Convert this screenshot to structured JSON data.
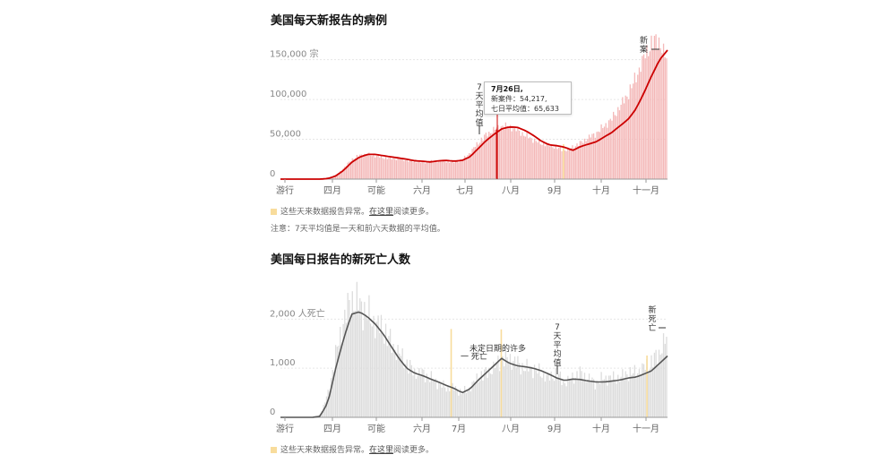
{
  "chart_data": [
    {
      "type": "bar",
      "title": "美国每天新报告的病例",
      "y_tick_labels": [
        "150,000 宗",
        "100,000",
        "50,000",
        "0"
      ],
      "y_ticks": [
        150000,
        100000,
        50000,
        0
      ],
      "ylim": [
        0,
        180000
      ],
      "x_tick_labels": [
        "游行",
        "四月",
        "可能",
        "六月",
        "七月",
        "八月",
        "9月",
        "十月",
        "十一月"
      ],
      "series": [
        {
          "name": "新案件",
          "anchor_values": [
            0,
            0,
            0,
            0,
            0,
            0,
            1000,
            5000,
            14000,
            25000,
            30000,
            31000,
            29000,
            27000,
            26000,
            25000,
            24000,
            22000,
            21000,
            22000,
            23000,
            22000,
            21000,
            24000,
            33000,
            45000,
            55000,
            62000,
            66000,
            66000,
            62000,
            55000,
            50000,
            45000,
            43000,
            40000,
            36000,
            40000,
            45000,
            52000,
            57000,
            66000,
            75000,
            90000,
            105000,
            125000,
            150000,
            170000,
            175000,
            150000
          ]
        },
        {
          "name": "7天平均值",
          "anchor_values": [
            0,
            0,
            0,
            0,
            0,
            0,
            700,
            4000,
            11000,
            21000,
            27500,
            31000,
            31000,
            29500,
            28000,
            26500,
            25000,
            23000,
            22500,
            21500,
            23000,
            23500,
            22500,
            23500,
            28000,
            38000,
            48000,
            56000,
            63000,
            65633,
            65000,
            61000,
            55000,
            48000,
            43000,
            42000,
            40000,
            36000,
            41000,
            44000,
            47000,
            53000,
            59000,
            67000,
            75000,
            88000,
            108000,
            130000,
            150000,
            162000
          ]
        }
      ],
      "annotations": [
        "新案",
        "7天平均值"
      ],
      "tooltip": {
        "date": "7月26日,",
        "line1": "新案件：54,217,",
        "line2": "七日平均值：65,633"
      },
      "note": "这些天来数据报告异常。",
      "note_link": "在这里",
      "note_suffix": "阅读更多。",
      "footnote": "注意：7天平均值是一天和前六天数据的平均值。",
      "colors": {
        "bars": "#f4b8b8",
        "line": "#cc0000",
        "anomaly": "#f8dc9c"
      }
    },
    {
      "type": "bar",
      "title": "美国每日报告的新死亡人数",
      "y_tick_labels": [
        "2,000 人死亡",
        "1,000",
        "0"
      ],
      "y_ticks": [
        2000,
        1000,
        0
      ],
      "ylim": [
        0,
        2700
      ],
      "x_tick_labels": [
        "游行",
        "四月",
        "可能",
        "六月",
        "7月",
        "八月",
        "9月",
        "十月",
        "十一月"
      ],
      "series": [
        {
          "name": "新死亡",
          "anchor_values": [
            0,
            0,
            0,
            0,
            0,
            50,
            500,
            1300,
            2000,
            2400,
            2300,
            2100,
            1900,
            1800,
            1500,
            1300,
            1100,
            900,
            900,
            800,
            700,
            600,
            600,
            500,
            600,
            800,
            900,
            1000,
            1200,
            1200,
            1100,
            1000,
            1000,
            900,
            800,
            900,
            700,
            800,
            900,
            800,
            700,
            800,
            800,
            800,
            900,
            900,
            1000,
            1100,
            1300,
            1600
          ]
        },
        {
          "name": "7天平均值",
          "anchor_values": [
            0,
            0,
            0,
            0,
            0,
            20,
            300,
            1000,
            1600,
            2100,
            2150,
            2050,
            1900,
            1700,
            1450,
            1200,
            1000,
            900,
            850,
            780,
            720,
            650,
            590,
            500,
            580,
            750,
            900,
            1050,
            1200,
            1100,
            1050,
            1030,
            1000,
            950,
            880,
            800,
            750,
            780,
            770,
            740,
            720,
            720,
            740,
            760,
            800,
            820,
            880,
            950,
            1100,
            1250
          ]
        }
      ],
      "annotations": [
        "新死亡",
        "7天平均值",
        "未定日期的许多",
        "一 死亡"
      ],
      "note": "这些天来数据报告异常。",
      "note_link": "在这里",
      "note_suffix": "阅读更多。",
      "colors": {
        "bars": "#dcdcdc",
        "line": "#555555",
        "anomaly": "#f8dc9c"
      }
    }
  ]
}
